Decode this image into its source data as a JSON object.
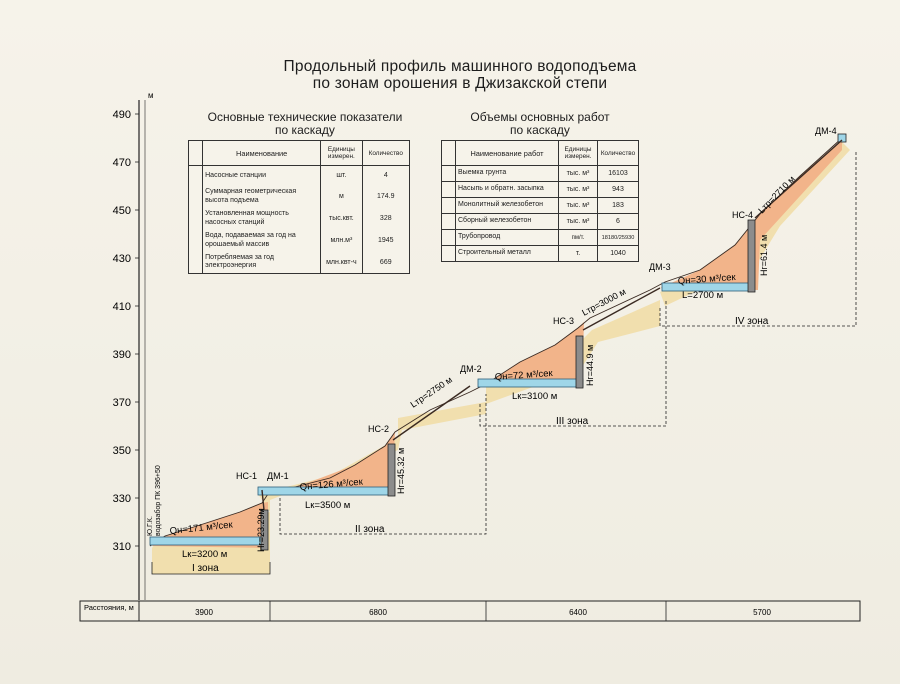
{
  "title": {
    "line1": "Продольный профиль машинного водоподъема",
    "line2": "по зонам орошения в Джизакской степи"
  },
  "axis": {
    "unit": "м",
    "ticks": [
      "490",
      "470",
      "450",
      "430",
      "410",
      "390",
      "370",
      "350",
      "330",
      "310"
    ]
  },
  "table_left": {
    "heading1": "Основные технические показатели",
    "heading2": "по каскаду",
    "headers": [
      "Наименование",
      "Единицы измерен.",
      "Количество"
    ],
    "rows": [
      {
        "name": "Насосные станции",
        "unit": "шт.",
        "value": "4"
      },
      {
        "name": "Суммарная геометрическая высота подъема",
        "unit": "м",
        "value": "174.9"
      },
      {
        "name": "Установленная мощность насосных станций",
        "unit": "тыс.квт.",
        "value": "328"
      },
      {
        "name": "Вода, подаваемая за год на орошаемый массив",
        "unit": "млн.м³",
        "value": "1945"
      },
      {
        "name": "Потребляемая за год электроэнергия",
        "unit": "млн.квт-ч",
        "value": "669"
      }
    ]
  },
  "table_right": {
    "heading1": "Объемы основных работ",
    "heading2": "по каскаду",
    "headers": [
      "Наименование работ",
      "Единицы измерен.",
      "Количество"
    ],
    "rows": [
      {
        "name": "Выемка грунта",
        "unit": "тыс. м³",
        "value": "16103"
      },
      {
        "name": "Насыпь и обратн. засыпка",
        "unit": "тыс. м³",
        "value": "943"
      },
      {
        "name": "Монолитный железобетон",
        "unit": "тыс. м³",
        "value": "183"
      },
      {
        "name": "Сборный железобетон",
        "unit": "тыс. м³",
        "value": "6"
      },
      {
        "name": "Трубопровод",
        "unit": "пм/т.",
        "value": "18180/25930"
      },
      {
        "name": "Строительный металл",
        "unit": "т.",
        "value": "1040"
      }
    ]
  },
  "intake": {
    "line1": "Ю.Г.К.",
    "line2": "водозабор ПК 396+50"
  },
  "stations": {
    "ns1": "НС-1",
    "dm1": "ДМ-1",
    "ns2": "НС-2",
    "dm2": "ДМ-2",
    "ns3": "НС-3",
    "dm3": "ДМ-3",
    "ns4": "НС-4",
    "dm4": "ДМ-4"
  },
  "flows": {
    "q1": "Qн=171 м³/сек",
    "q2": "Qн=126 м³/сек",
    "q3": "Qн=72 м³/сек",
    "q4": "Qн=30 м³/сек"
  },
  "canals": {
    "lk1": "Lк=3200 м",
    "lk2": "Lк=3500 м",
    "lk3": "Lк=3100 м",
    "lk4": "L=2700 м"
  },
  "pipes": {
    "ltr2": "Lтр=2750 м",
    "ltr3": "Lтр=3000 м",
    "ltr4": "Lтр=2710 м"
  },
  "heads": {
    "hg1": "Hг=23.29м",
    "hg2": "Hг=45.32 м",
    "hg3": "Hг=44.9 м",
    "hg4": "Hг=61.4 м"
  },
  "zones": {
    "z1": "I зона",
    "z2": "II зона",
    "z3": "III зона",
    "z4": "IV зона"
  },
  "distances": {
    "label": "Расстояния, м",
    "values": [
      "3900",
      "6800",
      "6400",
      "5700"
    ]
  },
  "colors": {
    "fill_orange": "#f2b48a",
    "fill_shadow": "#f1dfae",
    "water": "#9fd6e8"
  }
}
